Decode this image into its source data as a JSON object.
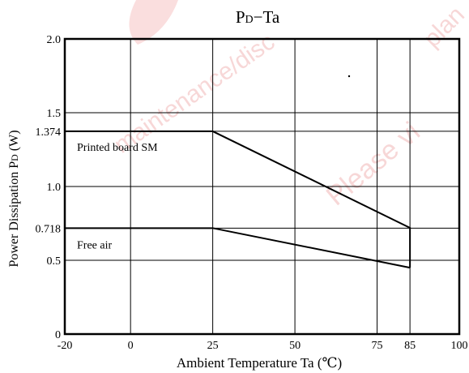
{
  "chart_data": {
    "type": "line",
    "title": {
      "main": "P",
      "sub": "D",
      "rest": "−Ta"
    },
    "xlabel": "Ambient Temperature Ta (℃)",
    "ylabel": {
      "main": "Power Dissipation P",
      "sub": "D",
      "rest": " (W)"
    },
    "xlim": [
      -20,
      100
    ],
    "ylim": [
      0,
      2.0
    ],
    "xticks": [
      -20,
      0,
      25,
      50,
      75,
      85,
      100
    ],
    "yticks": [
      {
        "value": 0,
        "label": "0"
      },
      {
        "value": 0.5,
        "label": "0.5"
      },
      {
        "value": 0.718,
        "label": "0.718"
      },
      {
        "value": 1.0,
        "label": "1.0"
      },
      {
        "value": 1.374,
        "label": "1.374"
      },
      {
        "value": 1.5,
        "label": "1.5"
      },
      {
        "value": 2.0,
        "label": "2.0"
      }
    ],
    "grid": true,
    "series": [
      {
        "name": "Printed board SM",
        "x": [
          -20,
          25,
          85,
          85
        ],
        "y": [
          1.374,
          1.374,
          0.72,
          0.45
        ]
      },
      {
        "name": "Free air",
        "x": [
          -20,
          25,
          85
        ],
        "y": [
          0.718,
          0.718,
          0.45
        ]
      }
    ]
  },
  "watermarks": [
    "maintenance/disc",
    "Please vi",
    "plan"
  ]
}
